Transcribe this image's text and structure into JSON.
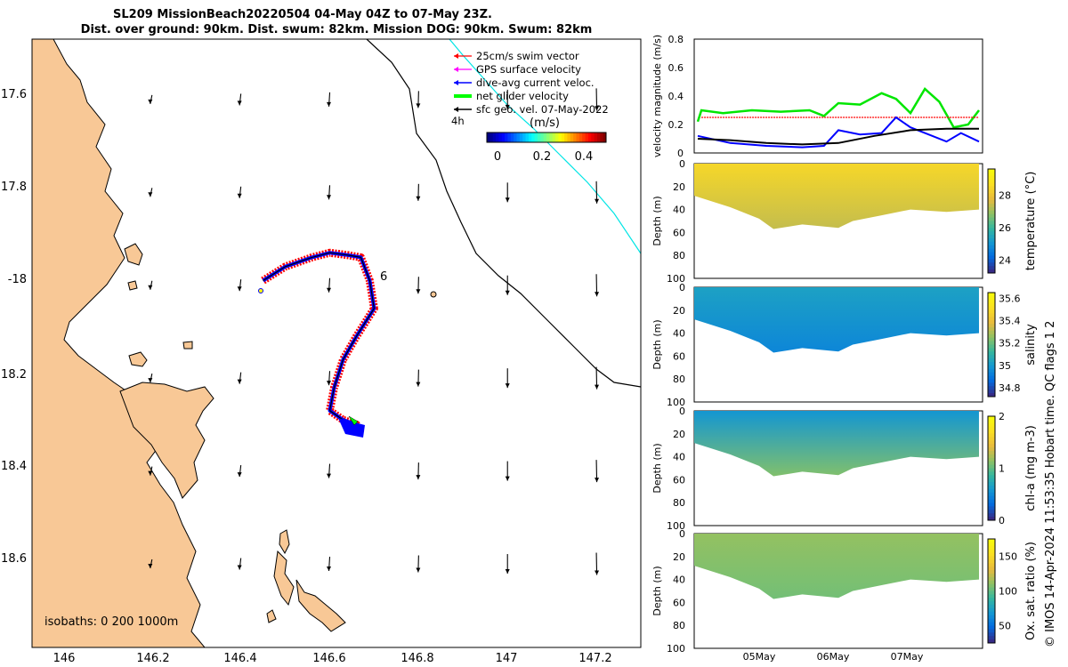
{
  "title": {
    "line1": "SL209 MissionBeach20220504 04-May 04Z to 07-May 23Z.",
    "line2": "Dist. over ground: 90km. Dist. swum: 82km. Mission DOG: 90km. Swum: 82km"
  },
  "credit": "© IMOS 14-Apr-2024 11:53:35 Hobart time. QC flags 1  2",
  "chart_data": [
    {
      "id": "map",
      "type": "map",
      "xlim": [
        145.93,
        147.3
      ],
      "ylim": [
        -18.78,
        -17.47
      ],
      "x_ticks": [
        146,
        146.2,
        146.4,
        146.6,
        146.8,
        147,
        147.2
      ],
      "y_ticks": [
        -17.6,
        -17.8,
        -18,
        -18.2,
        -18.4,
        -18.6
      ],
      "x_tick_labels": [
        "146",
        "146.2",
        "146.4",
        "146.6",
        "146.8",
        "147",
        "147.2"
      ],
      "y_tick_labels": [
        "17.6",
        "17.8",
        "-18",
        "18.2",
        "18.4",
        "18.6"
      ],
      "legend": [
        {
          "label": "25cm/s swim vector",
          "color": "#ff0000"
        },
        {
          "label": "GPS surface velocity",
          "color": "#ff00ff"
        },
        {
          "label": "dive-avg current veloc.",
          "color": "#0000ff"
        },
        {
          "label": "net glider velocity",
          "color": "#00ff00"
        },
        {
          "label": "sfc geo. vel. 07-May-2022",
          "color": "#000000"
        }
      ],
      "time_label": "4h",
      "day_label": "6",
      "colorbar": {
        "title": "(m/s)",
        "ticks": [
          "0",
          "0.2",
          "0.4"
        ],
        "range": [
          -0.1,
          0.5
        ]
      },
      "isobaths": "isobaths: 0   200  1000m",
      "track": [
        [
          146.45,
          -17.99
        ],
        [
          146.5,
          -17.96
        ],
        [
          146.56,
          -17.94
        ],
        [
          146.6,
          -17.93
        ],
        [
          146.64,
          -17.935
        ],
        [
          146.67,
          -17.94
        ],
        [
          146.69,
          -17.99
        ],
        [
          146.7,
          -18.05
        ],
        [
          146.66,
          -18.11
        ],
        [
          146.63,
          -18.16
        ],
        [
          146.61,
          -18.22
        ],
        [
          146.6,
          -18.27
        ],
        [
          146.63,
          -18.29
        ],
        [
          146.66,
          -18.3
        ],
        [
          146.67,
          -18.32
        ]
      ],
      "vectors_grid": {
        "lon": [
          146.2,
          146.4,
          146.6,
          146.8,
          147.0,
          147.2
        ],
        "lat": [
          -17.6,
          -17.8,
          -18.0,
          -18.2,
          -18.4,
          -18.6
        ]
      }
    },
    {
      "id": "velocity",
      "type": "line",
      "ylabel": "velocity magnitude (m/s)",
      "ylim": [
        0,
        0.8
      ],
      "y_ticks": [
        "0",
        "0.2",
        "0.4",
        "0.6",
        "0.8"
      ],
      "xlim": [
        0,
        4
      ],
      "series": [
        {
          "name": "net glider velocity",
          "color": "#00e600",
          "x": [
            0.05,
            0.1,
            0.4,
            0.8,
            1.2,
            1.6,
            1.8,
            2.0,
            2.3,
            2.6,
            2.8,
            3.0,
            3.2,
            3.4,
            3.6,
            3.8,
            3.95
          ],
          "y": [
            0.22,
            0.3,
            0.28,
            0.3,
            0.29,
            0.3,
            0.26,
            0.35,
            0.34,
            0.42,
            0.38,
            0.28,
            0.45,
            0.36,
            0.18,
            0.2,
            0.3
          ]
        },
        {
          "name": "swim speed",
          "color": "#ff0000",
          "x": [
            0.1,
            3.95
          ],
          "y": [
            0.25,
            0.25
          ]
        },
        {
          "name": "dive-avg current",
          "color": "#0000ff",
          "x": [
            0.05,
            0.5,
            1.0,
            1.5,
            1.8,
            2.0,
            2.3,
            2.6,
            2.8,
            3.0,
            3.2,
            3.5,
            3.7,
            3.95
          ],
          "y": [
            0.12,
            0.07,
            0.05,
            0.04,
            0.05,
            0.16,
            0.13,
            0.14,
            0.25,
            0.18,
            0.14,
            0.08,
            0.14,
            0.08
          ]
        },
        {
          "name": "sfc geo. vel.",
          "color": "#000000",
          "x": [
            0.05,
            0.5,
            1.0,
            1.5,
            2.0,
            2.5,
            3.0,
            3.5,
            3.95
          ],
          "y": [
            0.1,
            0.09,
            0.07,
            0.06,
            0.07,
            0.12,
            0.16,
            0.17,
            0.17
          ]
        }
      ]
    },
    {
      "id": "temperature",
      "type": "heatmap",
      "ylabel": "Depth (m)",
      "y_ticks": [
        "0",
        "20",
        "40",
        "60",
        "80",
        "100"
      ],
      "cbar_label": "temperature (°C)",
      "cbar_ticks": [
        "24",
        "26",
        "28"
      ],
      "cbar_range": [
        23.2,
        29.6
      ],
      "profile_bottom_m": [
        [
          0.0,
          28
        ],
        [
          0.5,
          38
        ],
        [
          0.9,
          48
        ],
        [
          1.1,
          57
        ],
        [
          1.5,
          53
        ],
        [
          2.0,
          56
        ],
        [
          2.2,
          50
        ],
        [
          2.6,
          45
        ],
        [
          3.0,
          40
        ],
        [
          3.5,
          42
        ],
        [
          3.95,
          40
        ]
      ],
      "surface_value": 28.5,
      "deep_value": 27.4
    },
    {
      "id": "salinity",
      "type": "heatmap",
      "ylabel": "Depth (m)",
      "y_ticks": [
        "0",
        "20",
        "40",
        "60",
        "80",
        "100"
      ],
      "cbar_label": "salinity",
      "cbar_ticks": [
        "34.8",
        "35",
        "35.2",
        "35.4",
        "35.6"
      ],
      "cbar_range": [
        34.72,
        35.65
      ],
      "profile_bottom_m": [
        [
          0.0,
          28
        ],
        [
          0.5,
          38
        ],
        [
          0.9,
          48
        ],
        [
          1.1,
          57
        ],
        [
          1.5,
          53
        ],
        [
          2.0,
          56
        ],
        [
          2.2,
          50
        ],
        [
          2.6,
          45
        ],
        [
          3.0,
          40
        ],
        [
          3.5,
          42
        ],
        [
          3.95,
          40
        ]
      ],
      "surface_value": 35.02,
      "deep_value": 34.93
    },
    {
      "id": "chlorophyll",
      "type": "heatmap",
      "ylabel": "Depth (m)",
      "y_ticks": [
        "0",
        "20",
        "40",
        "60",
        "80",
        "100"
      ],
      "cbar_label": "chl-a (mg m-3)",
      "cbar_ticks": [
        "0",
        "1",
        "2"
      ],
      "cbar_range": [
        0,
        2
      ],
      "profile_bottom_m": [
        [
          0.0,
          28
        ],
        [
          0.5,
          38
        ],
        [
          0.9,
          48
        ],
        [
          1.1,
          57
        ],
        [
          1.5,
          53
        ],
        [
          2.0,
          56
        ],
        [
          2.2,
          50
        ],
        [
          2.6,
          45
        ],
        [
          3.0,
          40
        ],
        [
          3.5,
          42
        ],
        [
          3.95,
          40
        ]
      ],
      "surface_value": 0.55,
      "deep_value": 1.1
    },
    {
      "id": "oxygen",
      "type": "heatmap",
      "ylabel": "Depth (m)",
      "y_ticks": [
        "0",
        "20",
        "40",
        "60",
        "80",
        "100"
      ],
      "cbar_label": "Ox. sat. ratio (%)",
      "cbar_ticks": [
        "50",
        "100",
        "150"
      ],
      "cbar_range": [
        25,
        175
      ],
      "x_tick_labels": [
        "05May",
        "06May",
        "07May"
      ],
      "x_ticks": [
        0.9,
        1.9,
        2.9
      ],
      "profile_bottom_m": [
        [
          0.0,
          28
        ],
        [
          0.5,
          38
        ],
        [
          0.9,
          48
        ],
        [
          1.1,
          57
        ],
        [
          1.5,
          53
        ],
        [
          2.0,
          56
        ],
        [
          2.2,
          50
        ],
        [
          2.6,
          45
        ],
        [
          3.0,
          40
        ],
        [
          3.5,
          42
        ],
        [
          3.95,
          40
        ]
      ],
      "surface_value": 112,
      "deep_value": 104
    }
  ]
}
